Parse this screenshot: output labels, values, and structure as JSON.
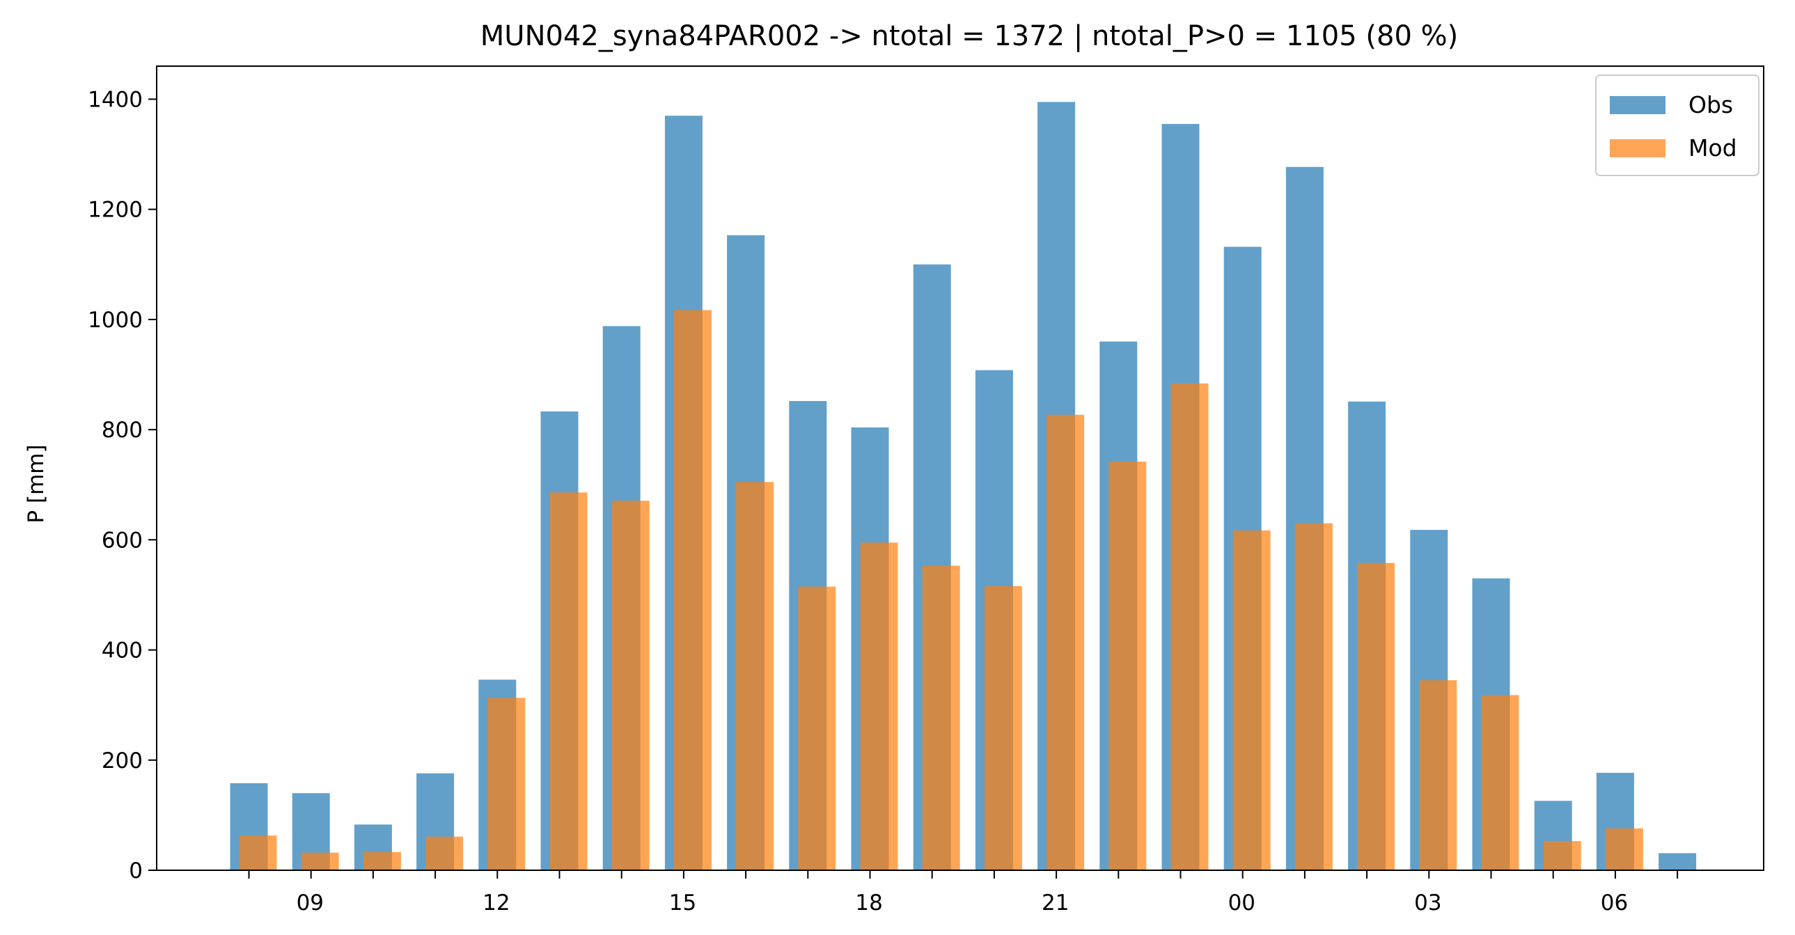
{
  "chart_data": {
    "type": "bar",
    "title": "MUN042_syna84PAR002 -> ntotal = 1372 | ntotal_P>0 = 1105 (80 %)",
    "xlabel": "",
    "ylabel": "P [mm]",
    "ylim": [
      0,
      1460
    ],
    "yticks": [
      0,
      200,
      400,
      600,
      800,
      1000,
      1200,
      1400
    ],
    "xtick_labels": [
      "09",
      "12",
      "15",
      "18",
      "21",
      "00",
      "03",
      "06"
    ],
    "x_hours": [
      8,
      9,
      10,
      11,
      12,
      13,
      14,
      15,
      16,
      17,
      18,
      19,
      20,
      21,
      22,
      23,
      0,
      1,
      2,
      3,
      4,
      5,
      6,
      7
    ],
    "series": [
      {
        "name": "Obs",
        "color": "#1f77b4",
        "values": [
          158,
          140,
          83,
          176,
          346,
          833,
          988,
          1370,
          1153,
          852,
          804,
          1100,
          908,
          1395,
          960,
          1355,
          1132,
          1277,
          851,
          618,
          530,
          126,
          177,
          31
        ]
      },
      {
        "name": "Mod",
        "color": "#ff7f0e",
        "values": [
          63,
          32,
          33,
          61,
          313,
          686,
          671,
          1017,
          705,
          515,
          595,
          553,
          516,
          827,
          742,
          884,
          617,
          630,
          558,
          345,
          318,
          53,
          76,
          0
        ]
      }
    ],
    "legend": "top-right",
    "grid": false
  }
}
